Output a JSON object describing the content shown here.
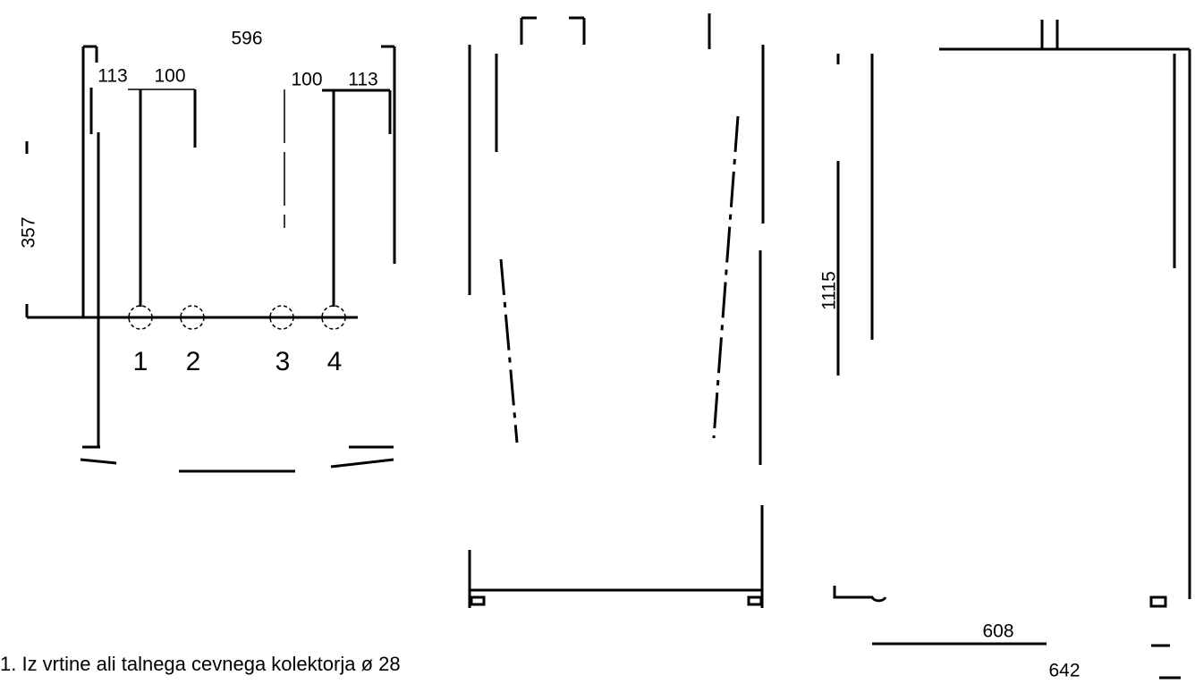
{
  "left_view": {
    "dimensions": {
      "width": "596",
      "left_offset": "113",
      "left_spacing": "100",
      "right_spacing": "100",
      "right_offset": "113",
      "height": "357"
    },
    "connections": [
      "1",
      "2",
      "3",
      "4"
    ]
  },
  "right_view": {
    "dimensions": {
      "height": "1115",
      "depth": "608",
      "total_depth": "642"
    }
  },
  "note": "1.  Iz vrtine ali talnega cevnega  kolektorja ø 28"
}
